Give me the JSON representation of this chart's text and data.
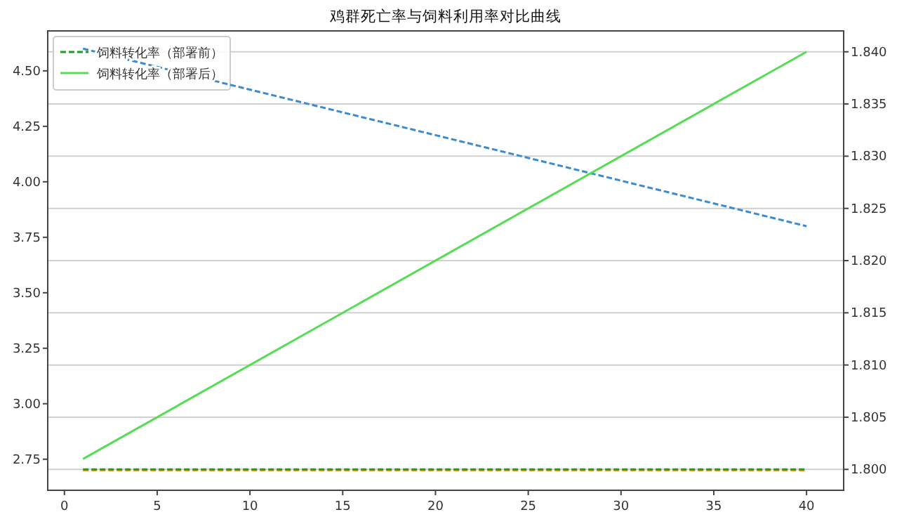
{
  "chart_data": {
    "type": "line",
    "title": "鸡群死亡率与饲料利用率对比曲线",
    "x": [
      1,
      40
    ],
    "xlim": [
      -0.9,
      42
    ],
    "xticks": [
      0,
      5,
      10,
      15,
      20,
      25,
      30,
      35,
      40
    ],
    "ylim": [
      2.61,
      4.68
    ],
    "yticks": [
      {
        "value": 2.75,
        "label": "2.75"
      },
      {
        "value": 3.0,
        "label": "3.00"
      },
      {
        "value": 3.25,
        "label": "3.25"
      },
      {
        "value": 3.5,
        "label": "3.50"
      },
      {
        "value": 3.75,
        "label": "3.75"
      },
      {
        "value": 4.0,
        "label": "4.00"
      },
      {
        "value": 4.25,
        "label": "4.25"
      },
      {
        "value": 4.5,
        "label": "4.50"
      }
    ],
    "y2lim": [
      1.798,
      1.842
    ],
    "y2ticks": [
      {
        "value": 1.8,
        "label": "1.800"
      },
      {
        "value": 1.805,
        "label": "1.805"
      },
      {
        "value": 1.81,
        "label": "1.810"
      },
      {
        "value": 1.815,
        "label": "1.815"
      },
      {
        "value": 1.82,
        "label": "1.820"
      },
      {
        "value": 1.825,
        "label": "1.825"
      },
      {
        "value": 1.83,
        "label": "1.830"
      },
      {
        "value": 1.835,
        "label": "1.835"
      },
      {
        "value": 1.84,
        "label": "1.840"
      }
    ],
    "grid": "y2",
    "legend": "top left",
    "series": [
      {
        "color": "#3b8bd0",
        "line_style": "dashed",
        "values": [
          4.6,
          3.8
        ]
      },
      {
        "color": "#ff9933",
        "line_style": "dashed",
        "values": [
          2.7,
          2.7
        ]
      },
      {
        "name": "饲料转化率（部署前）",
        "color": "#1f9e1f",
        "line_style": "dashed",
        "axis": "y2",
        "values": [
          1.8,
          1.8
        ]
      },
      {
        "name": "饲料转化率（部署后）",
        "color": "#55dd55",
        "line_style": "solid",
        "axis": "y2",
        "values": [
          1.801,
          1.84
        ]
      }
    ]
  }
}
